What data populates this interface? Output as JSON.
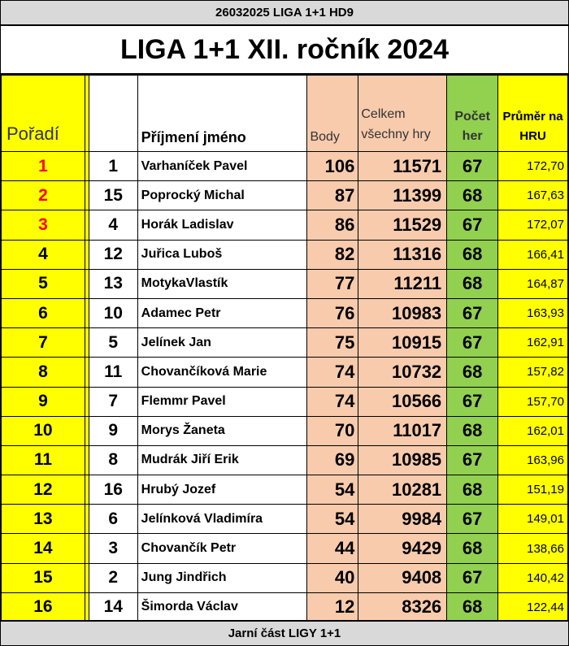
{
  "header": {
    "top_label": "26032025 LIGA 1+1 HD9",
    "title": "LIGA 1+1 XII. ročník 2024"
  },
  "columns": {
    "rank": "Pořadí",
    "name": "Příjmení jméno",
    "points": "Body",
    "total": "Celkem všechny hry",
    "games": "Počet her",
    "average": "Průměr na HRU"
  },
  "rows": [
    {
      "rank": "1",
      "num": "1",
      "name": "Varhaníček Pavel",
      "points": "106",
      "total": "11571",
      "games": "67",
      "avg": "172,70"
    },
    {
      "rank": "2",
      "num": "15",
      "name": "Poprocký Michal",
      "points": "87",
      "total": "11399",
      "games": "68",
      "avg": "167,63"
    },
    {
      "rank": "3",
      "num": "4",
      "name": "Horák Ladislav",
      "points": "86",
      "total": "11529",
      "games": "67",
      "avg": "172,07"
    },
    {
      "rank": "4",
      "num": "12",
      "name": "Juřica Luboš",
      "points": "82",
      "total": "11316",
      "games": "68",
      "avg": "166,41"
    },
    {
      "rank": "5",
      "num": "13",
      "name": "MotykaVlastík",
      "points": "77",
      "total": "11211",
      "games": "68",
      "avg": "164,87"
    },
    {
      "rank": "6",
      "num": "10",
      "name": "Adamec Petr",
      "points": "76",
      "total": "10983",
      "games": "67",
      "avg": "163,93"
    },
    {
      "rank": "7",
      "num": "5",
      "name": "Jelínek Jan",
      "points": "75",
      "total": "10915",
      "games": "67",
      "avg": "162,91"
    },
    {
      "rank": "8",
      "num": "11",
      "name": "Chovančíková Marie",
      "points": "74",
      "total": "10732",
      "games": "68",
      "avg": "157,82"
    },
    {
      "rank": "9",
      "num": "7",
      "name": "Flemmr Pavel",
      "points": "74",
      "total": "10566",
      "games": "67",
      "avg": "157,70"
    },
    {
      "rank": "10",
      "num": "9",
      "name": "Morys Žaneta",
      "points": "70",
      "total": "11017",
      "games": "68",
      "avg": "162,01"
    },
    {
      "rank": "11",
      "num": "8",
      "name": "Mudrák Jiří Erik",
      "points": "69",
      "total": "10985",
      "games": "67",
      "avg": "163,96"
    },
    {
      "rank": "12",
      "num": "16",
      "name": "Hrubý Jozef",
      "points": "54",
      "total": "10281",
      "games": "68",
      "avg": "151,19"
    },
    {
      "rank": "13",
      "num": "6",
      "name": "Jelínková Vladimíra",
      "points": "54",
      "total": "9984",
      "games": "67",
      "avg": "149,01"
    },
    {
      "rank": "14",
      "num": "3",
      "name": "Chovančík Petr",
      "points": "44",
      "total": "9429",
      "games": "68",
      "avg": "138,66"
    },
    {
      "rank": "15",
      "num": "2",
      "name": "Jung Jindřich",
      "points": "40",
      "total": "9408",
      "games": "67",
      "avg": "140,42"
    },
    {
      "rank": "16",
      "num": "14",
      "name": "Šimorda Václav",
      "points": "12",
      "total": "8326",
      "games": "68",
      "avg": "122,44"
    }
  ],
  "footer": {
    "label": "Jarní část LIGY 1+1"
  },
  "colors": {
    "rank_fill": "#ffff00",
    "points_fill": "#f8cbad",
    "games_fill": "#92d050",
    "podium_text": "#ff0000",
    "strip_fill": "#d9d9d9"
  }
}
